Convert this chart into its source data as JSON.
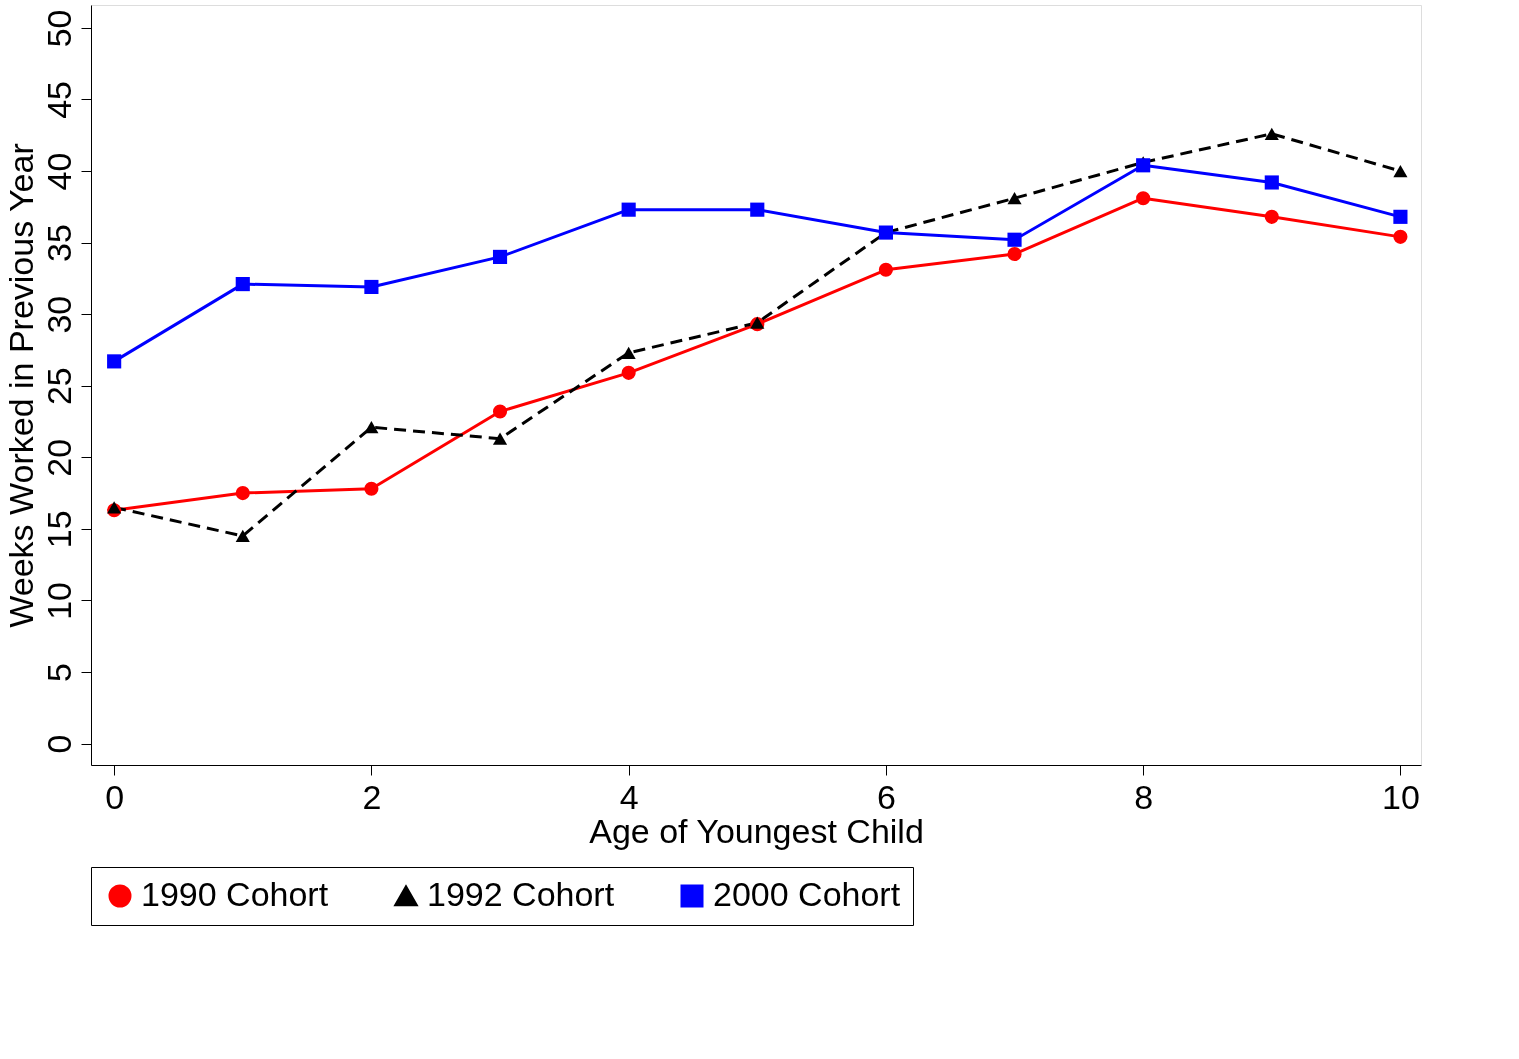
{
  "chart_data": {
    "type": "line",
    "xlabel": "Age of Youngest Child",
    "ylabel": "Weeks Worked in Previous Year",
    "x": [
      0,
      1,
      2,
      3,
      4,
      5,
      6,
      7,
      8,
      9,
      10
    ],
    "series": [
      {
        "name": "1990 Cohort",
        "color": "#ff0000",
        "marker": "circle",
        "line_style": "solid",
        "values": [
          16.3,
          17.5,
          17.8,
          23.2,
          25.9,
          29.3,
          33.1,
          34.2,
          38.1,
          36.8,
          35.4
        ]
      },
      {
        "name": "1992 Cohort",
        "color": "#000000",
        "marker": "triangle",
        "line_style": "dashed",
        "values": [
          16.5,
          14.5,
          22.1,
          21.3,
          27.3,
          29.4,
          35.7,
          38.1,
          40.6,
          42.6,
          40.0
        ]
      },
      {
        "name": "2000 Cohort",
        "color": "#0000ff",
        "marker": "square",
        "line_style": "solid",
        "values": [
          26.7,
          32.1,
          31.9,
          34.0,
          37.3,
          37.3,
          35.7,
          35.2,
          40.4,
          39.2,
          36.8
        ]
      }
    ],
    "xlim": [
      -0.18,
      10.16
    ],
    "ylim": [
      -1.5,
      51.6
    ],
    "xticks": [
      0,
      2,
      4,
      6,
      8,
      10
    ],
    "yticks": [
      0,
      5,
      10,
      15,
      20,
      25,
      30,
      35,
      40,
      45,
      50
    ],
    "grid": false,
    "legend": "bottom"
  }
}
